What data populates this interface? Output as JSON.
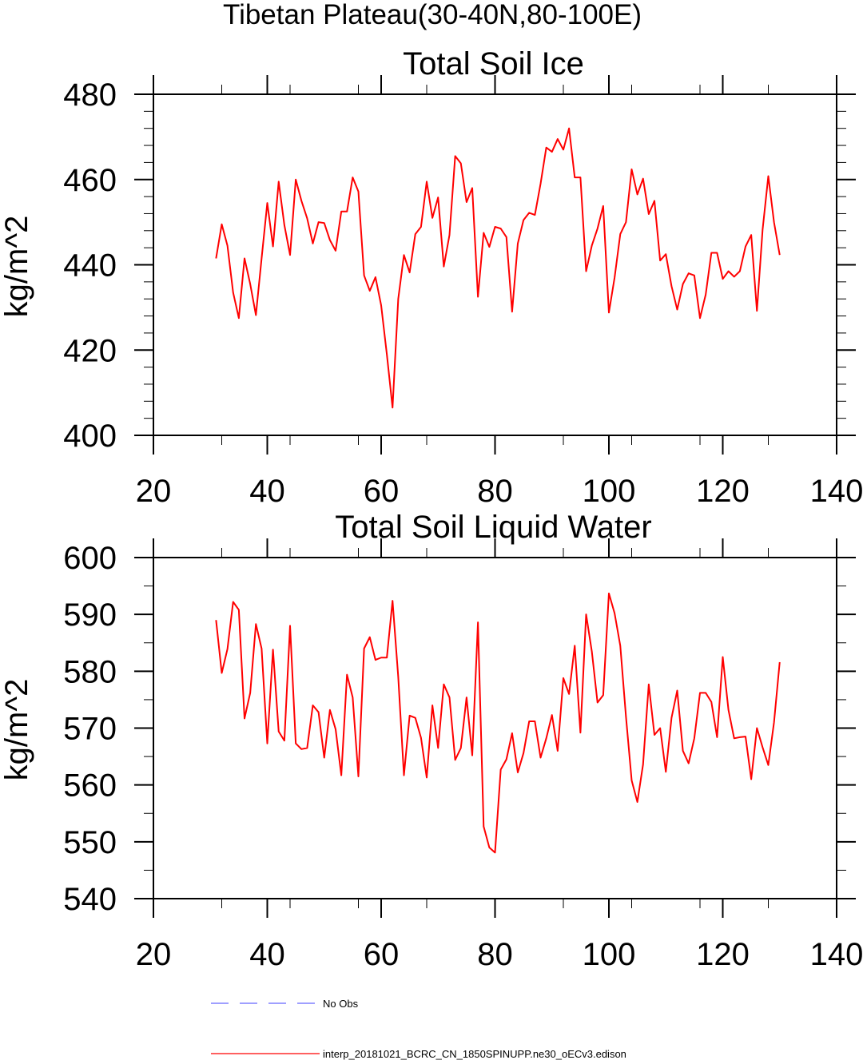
{
  "figure": {
    "suptitle": "Tibetan Plateau(30-40N,80-100E)"
  },
  "chart_data": [
    {
      "type": "line",
      "title": "Total Soil Ice",
      "xlabel": "",
      "ylabel": "kg/m^2",
      "xlim": [
        20,
        140
      ],
      "ylim": [
        400,
        480
      ],
      "xticks": [
        20,
        40,
        60,
        80,
        100,
        120,
        140
      ],
      "yticks": [
        400,
        420,
        440,
        460,
        480
      ],
      "grid": false,
      "series": [
        {
          "name": "interp_20181021_BCRC_CN_1850SPINUPP.ne30_oECv3.edison",
          "color": "#ff0000",
          "x_start": 31,
          "x_step": 1,
          "values": [
            441.5,
            449.5,
            444.5,
            433.5,
            427.5,
            441.5,
            435.5,
            428.2,
            441.5,
            454.5,
            444.3,
            459.5,
            449.3,
            442.3,
            460.0,
            455.0,
            450.9,
            445.0,
            450.0,
            449.8,
            445.8,
            443.3,
            452.5,
            452.5,
            460.5,
            457.2,
            437.5,
            433.9,
            437.1,
            430.5,
            419.0,
            406.5,
            432.0,
            442.3,
            438.2,
            447.2,
            448.9,
            459.5,
            451.0,
            455.8,
            439.6,
            447.0,
            465.5,
            463.8,
            454.7,
            458.0,
            432.5,
            447.5,
            444.2,
            448.9,
            448.5,
            446.5,
            429.0,
            445.0,
            450.5,
            452.2,
            451.7,
            459.0,
            467.5,
            466.5,
            469.5,
            467.0,
            472.0,
            460.5,
            460.5,
            438.5,
            444.5,
            448.5,
            453.8,
            428.8,
            437.0,
            447.2,
            450.0,
            462.4,
            456.5,
            460.2,
            451.9,
            455.0,
            441.0,
            442.5,
            435.0,
            429.5,
            435.5,
            438.0,
            437.5,
            427.5,
            433.0,
            442.8,
            442.8,
            436.7,
            438.5,
            437.2,
            438.5,
            444.3,
            447.0,
            429.2,
            448.3,
            460.8,
            450.0,
            442.3
          ]
        }
      ]
    },
    {
      "type": "line",
      "title": "Total Soil Liquid Water",
      "xlabel": "",
      "ylabel": "kg/m^2",
      "xlim": [
        20,
        140
      ],
      "ylim": [
        540,
        600
      ],
      "xticks": [
        20,
        40,
        60,
        80,
        100,
        120,
        140
      ],
      "yticks": [
        540,
        550,
        560,
        570,
        580,
        590,
        600
      ],
      "grid": false,
      "series": [
        {
          "name": "interp_20181021_BCRC_CN_1850SPINUPP.ne30_oECv3.edison",
          "color": "#ff0000",
          "x_start": 31,
          "x_step": 1,
          "values": [
            589.0,
            579.7,
            583.9,
            592.2,
            590.8,
            571.7,
            576.2,
            588.3,
            584.0,
            567.3,
            583.8,
            569.4,
            567.8,
            588.0,
            567.3,
            566.3,
            566.5,
            574.0,
            572.8,
            564.8,
            573.2,
            569.8,
            561.7,
            579.4,
            575.4,
            561.5,
            584.0,
            586.0,
            582.0,
            582.4,
            582.4,
            592.4,
            579.0,
            561.7,
            572.2,
            571.8,
            568.3,
            561.3,
            574.0,
            566.5,
            577.7,
            575.4,
            564.4,
            566.5,
            575.4,
            565.2,
            588.6,
            552.7,
            549.0,
            548.1,
            562.7,
            564.5,
            569.1,
            562.2,
            565.6,
            571.2,
            571.2,
            564.8,
            568.2,
            572.3,
            566.0,
            578.8,
            576.0,
            584.5,
            569.2,
            590.0,
            583.5,
            574.5,
            575.8,
            593.7,
            590.2,
            584.5,
            572.0,
            560.8,
            557.0,
            563.6,
            577.7,
            568.8,
            570.0,
            562.3,
            571.8,
            576.6,
            566.0,
            563.8,
            568.2,
            576.2,
            576.2,
            574.6,
            568.4,
            582.5,
            573.2,
            568.2,
            568.4,
            568.5,
            561.0,
            570.0,
            566.6,
            563.5,
            571.0,
            581.6
          ]
        }
      ]
    }
  ],
  "legend": {
    "placement": "bottom-left",
    "entries": [
      {
        "label": "No Obs",
        "color": "#6666ff",
        "style": "dashed"
      },
      {
        "label": "interp_20181021_BCRC_CN_1850SPINUPP.ne30_oECv3.edison",
        "color": "#ff0000",
        "style": "solid"
      }
    ]
  }
}
